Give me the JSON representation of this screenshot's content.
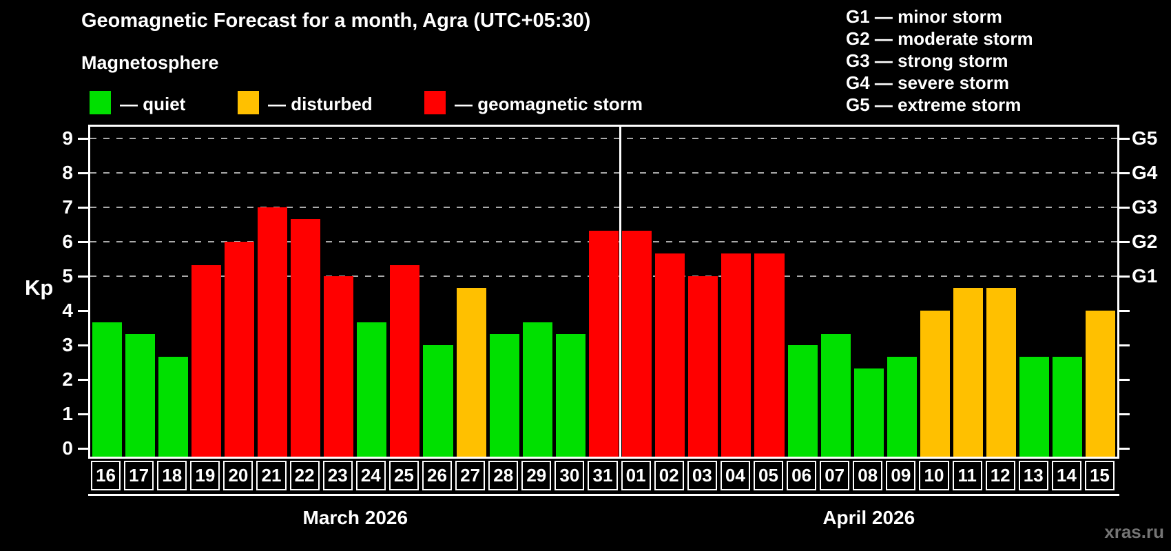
{
  "header": {
    "title": "Geomagnetic Forecast for a month, Agra (UTC+05:30)",
    "subtitle": "Magnetosphere"
  },
  "legend": {
    "items": [
      {
        "key": "quiet",
        "label": "— quiet"
      },
      {
        "key": "disturbed",
        "label": "— disturbed"
      },
      {
        "key": "storm",
        "label": "— geomagnetic storm"
      }
    ]
  },
  "g_scale_legend": {
    "items": [
      "G1 — minor storm",
      "G2 — moderate storm",
      "G3 — strong storm",
      "G4 — severe storm",
      "G5 — extreme storm"
    ]
  },
  "colors": {
    "quiet": "#00e000",
    "disturbed": "#ffc000",
    "storm": "#ff0000",
    "grid": "#aaaaaa",
    "axis": "#ffffff",
    "watermark": "#757575"
  },
  "y_axis": {
    "label": "Kp",
    "ticks": [
      0,
      1,
      2,
      3,
      4,
      5,
      6,
      7,
      8,
      9
    ]
  },
  "right_axis": {
    "labels": [
      {
        "text": "G1",
        "kp": 5
      },
      {
        "text": "G2",
        "kp": 6
      },
      {
        "text": "G3",
        "kp": 7
      },
      {
        "text": "G4",
        "kp": 8
      },
      {
        "text": "G5",
        "kp": 9
      }
    ]
  },
  "months": [
    {
      "label": "March 2026"
    },
    {
      "label": "April 2026"
    }
  ],
  "watermark": "xras.ru",
  "chart_data": {
    "type": "bar",
    "title": "Geomagnetic Forecast for a month, Agra (UTC+05:30)",
    "ylabel": "Kp",
    "ylim": [
      0,
      9.4
    ],
    "yticks": [
      0,
      1,
      2,
      3,
      4,
      5,
      6,
      7,
      8,
      9
    ],
    "grid": "dashed horizontal lines at Kp 5,6,7,8,9 (G1–G5 levels)",
    "legend_position": "top-left",
    "bars": [
      {
        "date": "16",
        "month": "March 2026",
        "kp": 3.67,
        "status": "quiet"
      },
      {
        "date": "17",
        "month": "March 2026",
        "kp": 3.33,
        "status": "quiet"
      },
      {
        "date": "18",
        "month": "March 2026",
        "kp": 2.67,
        "status": "quiet"
      },
      {
        "date": "19",
        "month": "March 2026",
        "kp": 5.33,
        "status": "storm"
      },
      {
        "date": "20",
        "month": "March 2026",
        "kp": 6.0,
        "status": "storm"
      },
      {
        "date": "21",
        "month": "March 2026",
        "kp": 7.0,
        "status": "storm"
      },
      {
        "date": "22",
        "month": "March 2026",
        "kp": 6.67,
        "status": "storm"
      },
      {
        "date": "23",
        "month": "March 2026",
        "kp": 5.0,
        "status": "storm"
      },
      {
        "date": "24",
        "month": "March 2026",
        "kp": 3.67,
        "status": "quiet"
      },
      {
        "date": "25",
        "month": "March 2026",
        "kp": 5.33,
        "status": "storm"
      },
      {
        "date": "26",
        "month": "March 2026",
        "kp": 3.0,
        "status": "quiet"
      },
      {
        "date": "27",
        "month": "March 2026",
        "kp": 4.67,
        "status": "disturbed"
      },
      {
        "date": "28",
        "month": "March 2026",
        "kp": 3.33,
        "status": "quiet"
      },
      {
        "date": "29",
        "month": "March 2026",
        "kp": 3.67,
        "status": "quiet"
      },
      {
        "date": "30",
        "month": "March 2026",
        "kp": 3.33,
        "status": "quiet"
      },
      {
        "date": "31",
        "month": "March 2026",
        "kp": 6.33,
        "status": "storm"
      },
      {
        "date": "01",
        "month": "April 2026",
        "kp": 6.33,
        "status": "storm"
      },
      {
        "date": "02",
        "month": "April 2026",
        "kp": 5.67,
        "status": "storm"
      },
      {
        "date": "03",
        "month": "April 2026",
        "kp": 5.0,
        "status": "storm"
      },
      {
        "date": "04",
        "month": "April 2026",
        "kp": 5.67,
        "status": "storm"
      },
      {
        "date": "05",
        "month": "April 2026",
        "kp": 5.67,
        "status": "storm"
      },
      {
        "date": "06",
        "month": "April 2026",
        "kp": 3.0,
        "status": "quiet"
      },
      {
        "date": "07",
        "month": "April 2026",
        "kp": 3.33,
        "status": "quiet"
      },
      {
        "date": "08",
        "month": "April 2026",
        "kp": 2.33,
        "status": "quiet"
      },
      {
        "date": "09",
        "month": "April 2026",
        "kp": 2.67,
        "status": "quiet"
      },
      {
        "date": "10",
        "month": "April 2026",
        "kp": 4.0,
        "status": "disturbed"
      },
      {
        "date": "11",
        "month": "April 2026",
        "kp": 4.67,
        "status": "disturbed"
      },
      {
        "date": "12",
        "month": "April 2026",
        "kp": 4.67,
        "status": "disturbed"
      },
      {
        "date": "13",
        "month": "April 2026",
        "kp": 2.67,
        "status": "quiet"
      },
      {
        "date": "14",
        "month": "April 2026",
        "kp": 2.67,
        "status": "quiet"
      },
      {
        "date": "15",
        "month": "April 2026",
        "kp": 4.0,
        "status": "disturbed"
      }
    ]
  }
}
